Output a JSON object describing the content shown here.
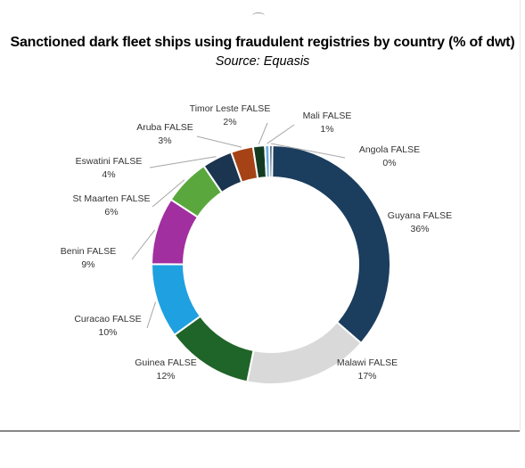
{
  "chart_data": {
    "type": "pie",
    "donut": true,
    "title": "Sanctioned dark fleet ships using fraudulent registries by country (% of dwt)",
    "subtitle": "Source: Equasis",
    "slices": [
      {
        "label": "Guyana FALSE",
        "value_label": "36%",
        "value": 36.2,
        "color": "#1b3d5e"
      },
      {
        "label": "Malawi FALSE",
        "value_label": "17%",
        "value": 16.8,
        "color": "#d9d9d9"
      },
      {
        "label": "Guinea FALSE",
        "value_label": "12%",
        "value": 11.8,
        "color": "#1f6428"
      },
      {
        "label": "Curacao FALSE",
        "value_label": "10%",
        "value": 10.1,
        "color": "#1fa0e0"
      },
      {
        "label": "Benin FALSE",
        "value_label": "9%",
        "value": 9.1,
        "color": "#a12f9f"
      },
      {
        "label": "St Maarten FALSE",
        "value_label": "6%",
        "value": 6.3,
        "color": "#5aa83d"
      },
      {
        "label": "Eswatini FALSE",
        "value_label": "4%",
        "value": 4.1,
        "color": "#1b3550"
      },
      {
        "label": "Aruba FALSE",
        "value_label": "3%",
        "value": 3.0,
        "color": "#a64316"
      },
      {
        "label": "Timor Leste FALSE",
        "value_label": "2%",
        "value": 1.6,
        "color": "#123b22"
      },
      {
        "label": "Mali FALSE",
        "value_label": "1%",
        "value": 0.6,
        "color": "#6ab0e0"
      },
      {
        "label": "Angola FALSE",
        "value_label": "0%",
        "value": 0.4,
        "color": "#1f3a5a"
      }
    ]
  }
}
